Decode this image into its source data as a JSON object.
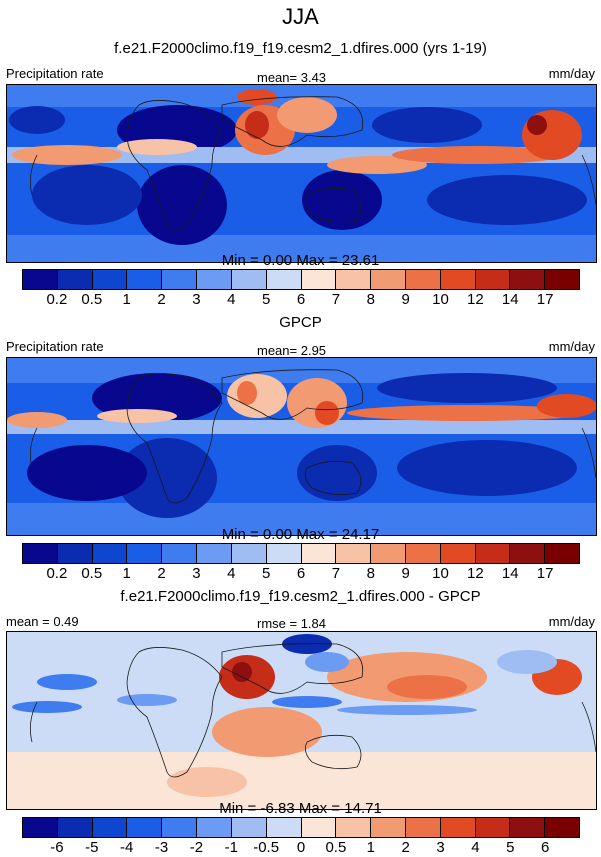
{
  "page": {
    "season": "JJA"
  },
  "panels": [
    {
      "title": "f.e21.F2000climo.f19_f19.cesm2_1.dfires.000 (yrs 1-19)",
      "left_label": "Precipitation rate",
      "stat_text": "mean=   3.43",
      "units": "mm/day",
      "minmax": "Min =   0.00 Max =  23.61",
      "colorbar_labels": [
        "0.2",
        "0.5",
        "1",
        "2",
        "3",
        "4",
        "5",
        "6",
        "7",
        "8",
        "9",
        "10",
        "12",
        "14",
        "17"
      ]
    },
    {
      "title": "GPCP",
      "left_label": "Precipitation rate",
      "stat_text": "mean=   2.95",
      "units": "mm/day",
      "minmax": "Min =   0.00 Max =  24.17",
      "colorbar_labels": [
        "0.2",
        "0.5",
        "1",
        "2",
        "3",
        "4",
        "5",
        "6",
        "7",
        "8",
        "9",
        "10",
        "12",
        "14",
        "17"
      ]
    },
    {
      "title": "f.e21.F2000climo.f19_f19.cesm2_1.dfires.000 - GPCP",
      "left_label": "mean =   0.49",
      "stat_text": "rmse =   1.84",
      "units": "mm/day",
      "minmax": "Min =  -6.83 Max =  14.71",
      "colorbar_labels": [
        "-6",
        "-5",
        "-4",
        "-3",
        "-2",
        "-1",
        "-0.5",
        "0",
        "0.5",
        "1",
        "2",
        "3",
        "4",
        "5",
        "6"
      ]
    }
  ],
  "colors": {
    "precip_scale": [
      "#08088f",
      "#0b2bb0",
      "#0f46cf",
      "#1a5ee8",
      "#3f7cf0",
      "#6b9bf2",
      "#9fbdf3",
      "#cddcf6",
      "#fbe5d7",
      "#f7c2a6",
      "#f29a72",
      "#ec7146",
      "#e24a23",
      "#c52d18",
      "#8e0f0f",
      "#7a0000"
    ],
    "diff_scale": [
      "#08088f",
      "#0b2bb0",
      "#0f46cf",
      "#1a5ee8",
      "#3f7cf0",
      "#6b9bf2",
      "#9fbdf3",
      "#cddcf6",
      "#fbe5d7",
      "#f7c2a6",
      "#f29a72",
      "#ec7146",
      "#e24a23",
      "#c52d18",
      "#8e0f0f",
      "#7a0000"
    ],
    "coast": "#1a1a1a"
  },
  "chart_data": [
    {
      "type": "heatmap",
      "title": "f.e21.F2000climo.f19_f19.cesm2_1.dfires.000 (yrs 1-19)",
      "variable": "Precipitation rate",
      "units": "mm/day",
      "mean": 3.43,
      "min": 0.0,
      "max": 23.61,
      "season": "JJA",
      "levels": [
        0.2,
        0.5,
        1,
        2,
        3,
        4,
        5,
        6,
        7,
        8,
        9,
        10,
        12,
        14,
        17
      ]
    },
    {
      "type": "heatmap",
      "title": "GPCP",
      "variable": "Precipitation rate",
      "units": "mm/day",
      "mean": 2.95,
      "min": 0.0,
      "max": 24.17,
      "season": "JJA",
      "levels": [
        0.2,
        0.5,
        1,
        2,
        3,
        4,
        5,
        6,
        7,
        8,
        9,
        10,
        12,
        14,
        17
      ]
    },
    {
      "type": "heatmap",
      "title": "f.e21.F2000climo.f19_f19.cesm2_1.dfires.000 - GPCP",
      "units": "mm/day",
      "mean": 0.49,
      "rmse": 1.84,
      "min": -6.83,
      "max": 14.71,
      "season": "JJA",
      "levels": [
        -6,
        -5,
        -4,
        -3,
        -2,
        -1,
        -0.5,
        0,
        0.5,
        1,
        2,
        3,
        4,
        5,
        6
      ]
    }
  ]
}
